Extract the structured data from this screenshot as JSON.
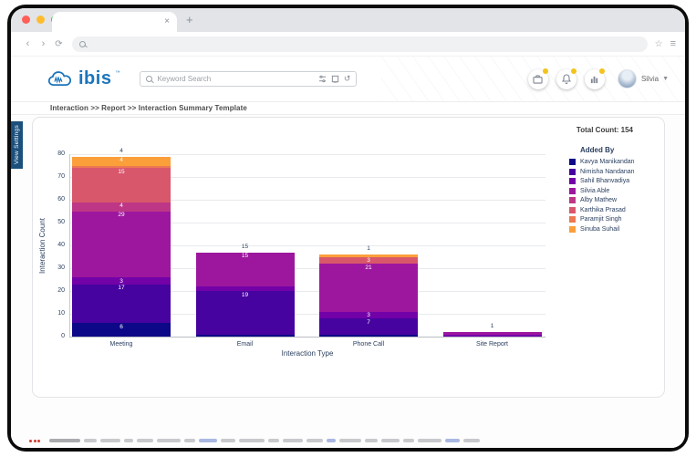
{
  "browser": {
    "tab": {
      "title": "",
      "close_glyph": "×",
      "new_tab_glyph": "+"
    },
    "nav": {
      "back_glyph": "‹",
      "forward_glyph": "›",
      "reload_glyph": "⟳",
      "star_glyph": "☆",
      "menu_glyph": "≡"
    }
  },
  "header": {
    "logo_text": "ibis",
    "logo_tm": "™",
    "search_placeholder": "Keyword Search",
    "history_glyph": "↺",
    "user_name": "Silvia",
    "caret_glyph": "▼"
  },
  "breadcrumb": "Interaction >> Report >> Interaction Summary Template",
  "side_tab_label": "View Settings",
  "report": {
    "total_count_text": "Total Count: 154"
  },
  "chart_data": {
    "type": "bar",
    "stacked": true,
    "xlabel": "Interaction Type",
    "ylabel": "Interaction Count",
    "ylim": [
      0,
      80
    ],
    "yticks": [
      0,
      10,
      20,
      30,
      40,
      50,
      60,
      70,
      80
    ],
    "grid": true,
    "legend_position": "right",
    "legend_title": "Added By",
    "categories": [
      "Meeting",
      "Email",
      "Phone Call",
      "Site Report"
    ],
    "series": [
      {
        "name": "Kavya Manikandan",
        "color": "#0d0887",
        "values": [
          6,
          1,
          1,
          0
        ]
      },
      {
        "name": "Nimisha Nandanan",
        "color": "#46039f",
        "values": [
          17,
          19,
          7,
          0
        ]
      },
      {
        "name": "Sahil Bhanvadiya",
        "color": "#7201a8",
        "values": [
          3,
          2,
          3,
          1
        ]
      },
      {
        "name": "Silvia Able",
        "color": "#9c179e",
        "values": [
          29,
          15,
          21,
          1
        ]
      },
      {
        "name": "Alby Mathew",
        "color": "#bd3786",
        "values": [
          4,
          0,
          0,
          0
        ]
      },
      {
        "name": "Karthika Prasad",
        "color": "#d8576b",
        "values": [
          15,
          0,
          3,
          0
        ]
      },
      {
        "name": "Paramjit Singh",
        "color": "#ed7953",
        "values": [
          1,
          0,
          0,
          0
        ]
      },
      {
        "name": "Sinuba Suhail",
        "color": "#fb9f3a",
        "values": [
          4,
          0,
          1,
          0
        ]
      }
    ],
    "category_totals": [
      79,
      37,
      36,
      2
    ],
    "total_count": 154
  }
}
